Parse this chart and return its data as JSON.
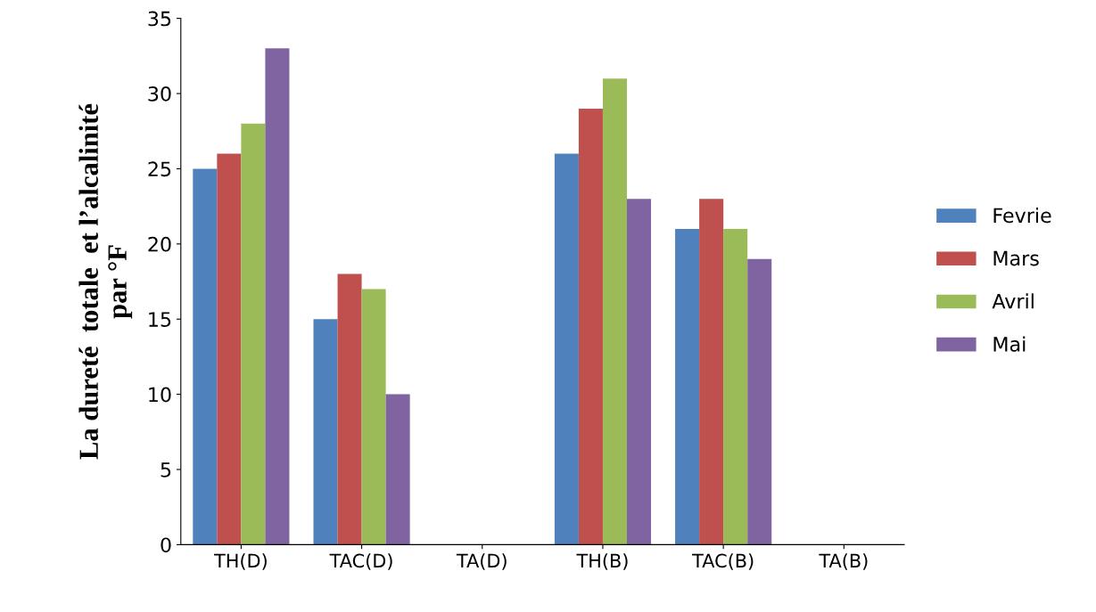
{
  "chart_data": {
    "type": "bar",
    "ylabel": "La dureté  totale  et l’alcalinité\npar °F",
    "categories": [
      "TH(D)",
      "TAC(D)",
      "TA(D)",
      "TH(B)",
      "TAC(B)",
      "TA(B)"
    ],
    "series": [
      {
        "name": "Fevrie",
        "color": "#4f81bd",
        "values": [
          25,
          15,
          0,
          26,
          21,
          0
        ]
      },
      {
        "name": "Mars",
        "color": "#c0504d",
        "values": [
          26,
          18,
          0,
          29,
          23,
          0
        ]
      },
      {
        "name": "Avril",
        "color": "#9bbb59",
        "values": [
          28,
          17,
          0,
          31,
          21,
          0
        ]
      },
      {
        "name": "Mai",
        "color": "#8064a2",
        "values": [
          33,
          10,
          0,
          23,
          19,
          0
        ]
      }
    ],
    "ylim": [
      0,
      35
    ],
    "yticks": [
      0,
      5,
      10,
      15,
      20,
      25,
      30,
      35
    ],
    "grid": false,
    "legend": "right"
  }
}
